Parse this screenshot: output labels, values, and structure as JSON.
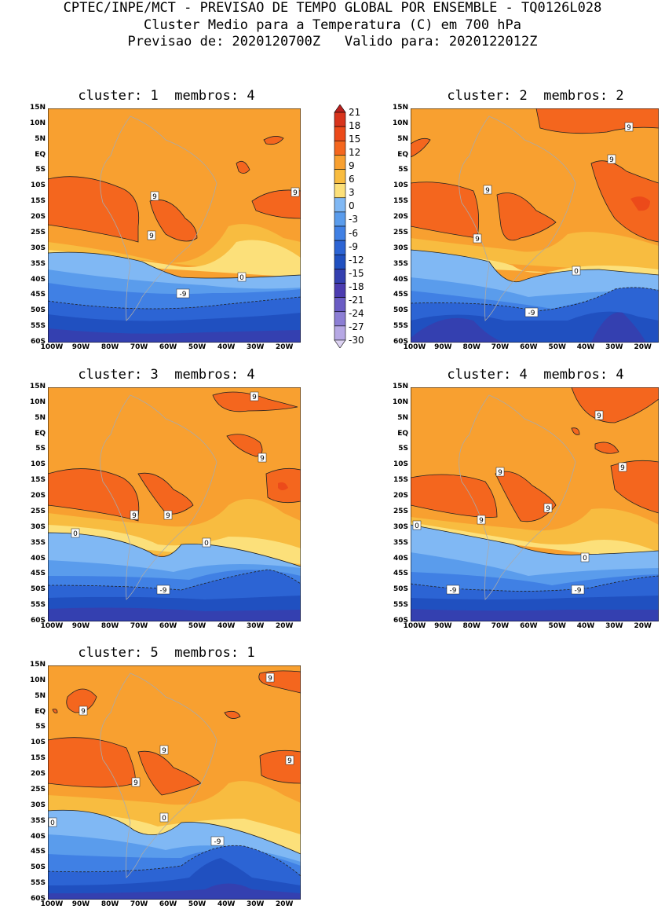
{
  "header": {
    "line1": "CPTEC/INPE/MCT - PREVISAO DE TEMPO GLOBAL POR ENSEMBLE - TQ0126L028",
    "line2": "Cluster Medio para a Temperatura (C) em 700 hPa",
    "line3": "Previsao de: 2020120700Z   Valido para: 2020122012Z"
  },
  "panels": [
    {
      "title": "cluster: 1  membros: 4"
    },
    {
      "title": "cluster: 2  membros: 2"
    },
    {
      "title": "cluster: 3  membros: 4"
    },
    {
      "title": "cluster: 4  membros: 4"
    },
    {
      "title": "cluster: 5  membros: 1"
    }
  ],
  "axes": {
    "lat_labels": [
      "15N",
      "10N",
      "5N",
      "EQ",
      "5S",
      "10S",
      "15S",
      "20S",
      "25S",
      "30S",
      "35S",
      "40S",
      "45S",
      "50S",
      "55S",
      "60S"
    ],
    "lon_labels": [
      "100W",
      "90W",
      "80W",
      "70W",
      "60W",
      "50W",
      "40W",
      "30W",
      "20W"
    ]
  },
  "colorbar": {
    "levels": [
      "21",
      "18",
      "15",
      "12",
      "9",
      "6",
      "3",
      "0",
      "-3",
      "-6",
      "-9",
      "-12",
      "-15",
      "-18",
      "-21",
      "-24",
      "-27",
      "-30"
    ],
    "colors": [
      "#b8201e",
      "#d8341c",
      "#ec4a1a",
      "#f4661e",
      "#f8a030",
      "#f8bc40",
      "#fce07a",
      "#80b8f4",
      "#5a9cec",
      "#4080e4",
      "#2c64d4",
      "#2050c0",
      "#3440b0",
      "#4c3cb0",
      "#6a5cc4",
      "#8c7ed4",
      "#b6a8e4",
      "#dcd2f2"
    ]
  },
  "map_colors": {
    "warm12": "#ec4a1a",
    "warm9": "#f4661e",
    "orange6": "#f8a030",
    "gold3": "#f8bc40",
    "yellow0": "#fce07a",
    "lb": "#80b8f4",
    "mb": "#5a9cec",
    "b6": "#4080e4",
    "b9": "#2c64d4",
    "b12": "#2050c0",
    "v15": "#3440b0",
    "v18": "#4c3cb0"
  },
  "contour_labels": {
    "p1": [
      "9",
      "9",
      "9",
      "0",
      "-9"
    ],
    "p2": [
      "9",
      "9",
      "9",
      "9",
      "0",
      "-9"
    ],
    "p3": [
      "9",
      "9",
      "9",
      "9",
      "0",
      "0",
      "-9"
    ],
    "p4": [
      "9",
      "9",
      "9",
      "9",
      "9",
      "0",
      "0",
      "-9",
      "-9"
    ],
    "p5": [
      "9",
      "9",
      "9",
      "9",
      "9",
      "0",
      "0",
      "-9"
    ]
  }
}
